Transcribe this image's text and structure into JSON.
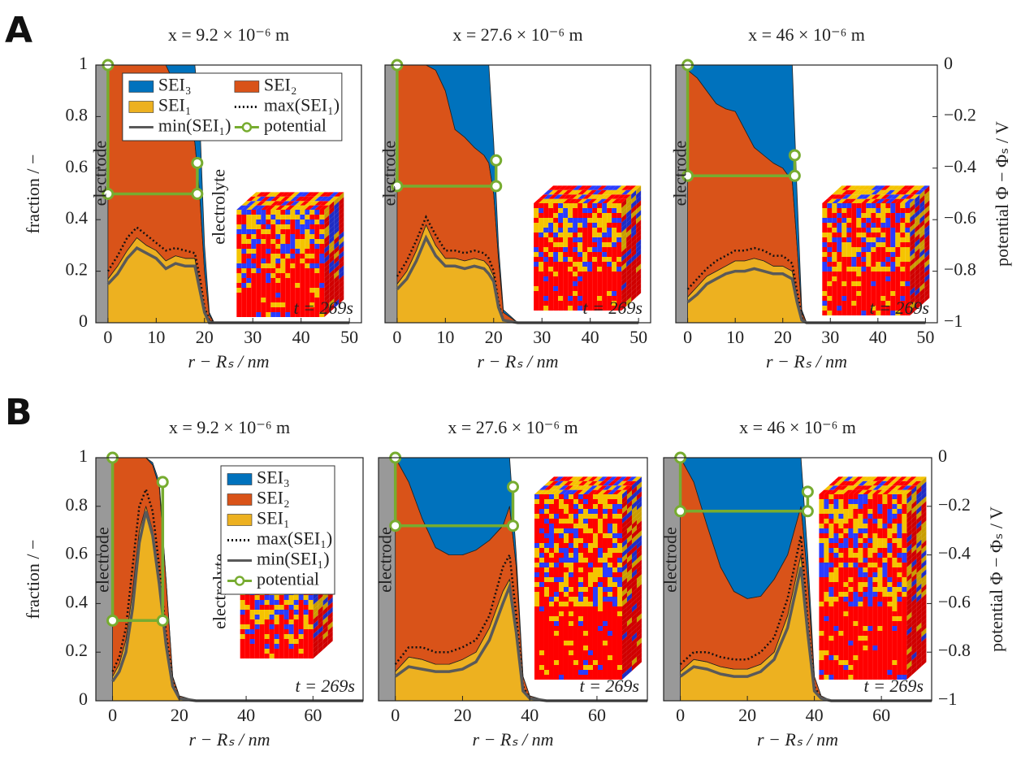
{
  "panel_labels": [
    "A",
    "B"
  ],
  "chart_data": [
    {
      "type": "area",
      "title": "x = 9.2 × 10⁻⁶ m",
      "xlabel": "r − Rₛ / nm",
      "ylabel": "fraction / −",
      "x": [
        0,
        2,
        4,
        6,
        8,
        10,
        12,
        14,
        16,
        18,
        19,
        20,
        21,
        22,
        25,
        30,
        40,
        50
      ],
      "xlim": [
        -2.5,
        52.5
      ],
      "xticks": [
        0,
        10,
        20,
        30,
        40,
        50
      ],
      "ylim": [
        0,
        1
      ],
      "yticks": [
        0,
        0.2,
        0.4,
        0.6,
        0.8,
        1
      ],
      "y2lim": [
        -1,
        0
      ],
      "legend": "upper left",
      "legend_columns": 2,
      "annotations": [
        "electrode",
        "electrolyte",
        "t = 269s"
      ],
      "series": [
        {
          "name": "SEI₃",
          "color": "#0072bd",
          "stack": true,
          "values": [
            0,
            0,
            0,
            0,
            0,
            0,
            0,
            0.08,
            0.2,
            0.3,
            0.3,
            0.1,
            0.01,
            0,
            0,
            0,
            0,
            0
          ]
        },
        {
          "name": "SEI₂",
          "color": "#d95319",
          "stack": true,
          "values": [
            0.83,
            0.78,
            0.72,
            0.67,
            0.7,
            0.72,
            0.76,
            0.66,
            0.55,
            0.45,
            0.35,
            0.15,
            0.02,
            0,
            0,
            0,
            0,
            0
          ]
        },
        {
          "name": "SEI₁",
          "color": "#edb120",
          "stack": true,
          "values": [
            0.17,
            0.22,
            0.28,
            0.33,
            0.3,
            0.28,
            0.24,
            0.26,
            0.25,
            0.25,
            0.15,
            0.05,
            0.01,
            0,
            0,
            0,
            0,
            0
          ]
        },
        {
          "name": "max(SEI₁)",
          "color": "#111111",
          "dash": "dotted",
          "values": [
            0.2,
            0.26,
            0.33,
            0.37,
            0.34,
            0.31,
            0.28,
            0.29,
            0.28,
            0.27,
            0.18,
            0.06,
            0.01,
            0,
            0,
            0,
            0,
            0
          ]
        },
        {
          "name": "min(SEI₁)",
          "color": "#595959",
          "values": [
            0.15,
            0.19,
            0.25,
            0.29,
            0.27,
            0.25,
            0.21,
            0.23,
            0.22,
            0.22,
            0.13,
            0.04,
            0,
            0,
            0,
            0,
            0,
            0
          ]
        },
        {
          "name": "potential",
          "color": "#77ac30",
          "axis": "y2",
          "x": [
            0,
            0,
            18.5,
            18.5
          ],
          "values": [
            0,
            -0.5,
            -0.5,
            -0.38
          ]
        }
      ]
    },
    {
      "type": "area",
      "title": "x = 27.6 × 10⁻⁶ m",
      "xlabel": "r − Rₛ / nm",
      "x": [
        0,
        2,
        4,
        6,
        8,
        10,
        12,
        14,
        16,
        18,
        19,
        20,
        21,
        22,
        25,
        30,
        40,
        50
      ],
      "xlim": [
        -2.5,
        52.5
      ],
      "xticks": [
        0,
        10,
        20,
        30,
        40,
        50
      ],
      "ylim": [
        0,
        1
      ],
      "y2lim": [
        -1,
        0
      ],
      "annotations": [
        "electrode",
        "t = 269s"
      ],
      "series": [
        {
          "name": "SEI₃",
          "color": "#0072bd",
          "stack": true,
          "values": [
            0,
            0,
            0,
            0,
            0.02,
            0.1,
            0.25,
            0.28,
            0.32,
            0.35,
            0.38,
            0.2,
            0.05,
            0.01,
            0,
            0,
            0,
            0
          ]
        },
        {
          "name": "SEI₂",
          "color": "#d95319",
          "stack": true,
          "values": [
            0.85,
            0.8,
            0.72,
            0.62,
            0.68,
            0.65,
            0.5,
            0.48,
            0.43,
            0.41,
            0.4,
            0.32,
            0.18,
            0.03,
            0,
            0,
            0,
            0
          ]
        },
        {
          "name": "SEI₁",
          "color": "#edb120",
          "stack": true,
          "values": [
            0.15,
            0.2,
            0.28,
            0.38,
            0.3,
            0.25,
            0.25,
            0.24,
            0.25,
            0.24,
            0.22,
            0.18,
            0.07,
            0.01,
            0,
            0,
            0,
            0
          ]
        },
        {
          "name": "max(SEI₁)",
          "color": "#111111",
          "dash": "dotted",
          "values": [
            0.18,
            0.24,
            0.32,
            0.41,
            0.34,
            0.28,
            0.28,
            0.27,
            0.28,
            0.27,
            0.25,
            0.2,
            0.08,
            0.01,
            0,
            0,
            0,
            0
          ]
        },
        {
          "name": "min(SEI₁)",
          "color": "#595959",
          "values": [
            0.13,
            0.17,
            0.24,
            0.33,
            0.26,
            0.22,
            0.22,
            0.21,
            0.22,
            0.21,
            0.19,
            0.16,
            0.06,
            0.01,
            0,
            0,
            0,
            0
          ]
        },
        {
          "name": "potential",
          "color": "#77ac30",
          "axis": "y2",
          "x": [
            0,
            0,
            20.5,
            20.5
          ],
          "values": [
            0,
            -0.47,
            -0.47,
            -0.37
          ]
        }
      ]
    },
    {
      "type": "area",
      "title": "x = 46 × 10⁻⁶ m",
      "xlabel": "r − Rₛ / nm",
      "y2label": "potential Φ − Φₛ / V",
      "x": [
        0,
        2,
        4,
        6,
        8,
        10,
        12,
        14,
        16,
        18,
        20,
        22,
        23,
        24,
        25,
        30,
        40,
        50
      ],
      "xlim": [
        -2.5,
        52.5
      ],
      "xticks": [
        0,
        10,
        20,
        30,
        40,
        50
      ],
      "ylim": [
        0,
        1
      ],
      "y2lim": [
        -1,
        0
      ],
      "y2ticks": [
        0,
        {
          "value": -0.2,
          "label": "−0.2"
        },
        {
          "value": -0.4,
          "label": "−0.4"
        },
        {
          "value": -0.6,
          "label": "−0.6"
        },
        {
          "value": -0.8,
          "label": "−0.8"
        },
        {
          "value": -1,
          "label": "−1"
        }
      ],
      "annotations": [
        "electrode",
        "t = 269s"
      ],
      "series": [
        {
          "name": "SEI₃",
          "color": "#0072bd",
          "stack": true,
          "values": [
            0.02,
            0.05,
            0.1,
            0.15,
            0.17,
            0.18,
            0.25,
            0.32,
            0.35,
            0.38,
            0.4,
            0.45,
            0.2,
            0.01,
            0,
            0,
            0,
            0
          ]
        },
        {
          "name": "SEI₂",
          "color": "#d95319",
          "stack": true,
          "values": [
            0.88,
            0.81,
            0.72,
            0.65,
            0.61,
            0.58,
            0.51,
            0.43,
            0.41,
            0.4,
            0.38,
            0.35,
            0.2,
            0.02,
            0,
            0,
            0,
            0
          ]
        },
        {
          "name": "SEI₁",
          "color": "#edb120",
          "stack": true,
          "values": [
            0.1,
            0.14,
            0.18,
            0.2,
            0.22,
            0.24,
            0.24,
            0.25,
            0.24,
            0.22,
            0.22,
            0.2,
            0.1,
            0.02,
            0,
            0,
            0,
            0
          ]
        },
        {
          "name": "max(SEI₁)",
          "color": "#111111",
          "dash": "dotted",
          "values": [
            0.13,
            0.17,
            0.21,
            0.24,
            0.26,
            0.28,
            0.28,
            0.29,
            0.28,
            0.26,
            0.26,
            0.23,
            0.12,
            0.02,
            0,
            0,
            0,
            0
          ]
        },
        {
          "name": "min(SEI₁)",
          "color": "#595959",
          "values": [
            0.08,
            0.11,
            0.15,
            0.17,
            0.19,
            0.2,
            0.2,
            0.21,
            0.2,
            0.19,
            0.19,
            0.17,
            0.08,
            0.01,
            0,
            0,
            0,
            0
          ]
        },
        {
          "name": "potential",
          "color": "#77ac30",
          "axis": "y2",
          "x": [
            0,
            0,
            22.5,
            22.5
          ],
          "values": [
            0,
            -0.43,
            -0.43,
            -0.35
          ]
        }
      ]
    },
    {
      "type": "area",
      "title": "x = 9.2 × 10⁻⁶ m",
      "xlabel": "r − Rₛ / nm",
      "ylabel": "fraction / −",
      "x": [
        0,
        2,
        4,
        6,
        8,
        10,
        12,
        14,
        16,
        18,
        20,
        25,
        30,
        40,
        50,
        60,
        75
      ],
      "xlim": [
        -5,
        75
      ],
      "xticks": [
        0,
        20,
        40,
        60
      ],
      "ylim": [
        0,
        1
      ],
      "yticks": [
        0,
        0.2,
        0.4,
        0.6,
        0.8,
        1
      ],
      "y2lim": [
        -1,
        0
      ],
      "legend": "upper right",
      "legend_columns": 1,
      "annotations": [
        "electrode",
        "electrolyte",
        "t = 269s"
      ],
      "series": [
        {
          "name": "SEI₃",
          "color": "#0072bd",
          "stack": true,
          "values": [
            0,
            0,
            0,
            0,
            0,
            0,
            0.01,
            0.02,
            0,
            0,
            0,
            0,
            0,
            0,
            0,
            0,
            0
          ]
        },
        {
          "name": "SEI₂",
          "color": "#d95319",
          "stack": true,
          "values": [
            0.9,
            0.85,
            0.75,
            0.55,
            0.3,
            0.2,
            0.27,
            0.38,
            0.25,
            0.03,
            0.01,
            0,
            0,
            0,
            0,
            0,
            0
          ]
        },
        {
          "name": "SEI₁",
          "color": "#edb120",
          "stack": true,
          "values": [
            0.1,
            0.15,
            0.25,
            0.45,
            0.7,
            0.8,
            0.7,
            0.5,
            0.25,
            0.07,
            0.01,
            0,
            0,
            0,
            0,
            0,
            0
          ]
        },
        {
          "name": "max(SEI₁)",
          "color": "#111111",
          "dash": "dotted",
          "values": [
            0.12,
            0.18,
            0.3,
            0.55,
            0.8,
            0.87,
            0.78,
            0.55,
            0.28,
            0.08,
            0.01,
            0,
            0,
            0,
            0,
            0,
            0
          ]
        },
        {
          "name": "min(SEI₁)",
          "color": "#595959",
          "values": [
            0.08,
            0.12,
            0.2,
            0.38,
            0.65,
            0.78,
            0.68,
            0.48,
            0.23,
            0.06,
            0.01,
            0,
            0,
            0,
            0,
            0,
            0
          ]
        },
        {
          "name": "potential",
          "color": "#77ac30",
          "axis": "y2",
          "x": [
            0,
            0,
            15,
            15
          ],
          "values": [
            0,
            -0.67,
            -0.67,
            -0.1
          ]
        }
      ]
    },
    {
      "type": "area",
      "title": "x = 27.6 × 10⁻⁶ m",
      "xlabel": "r − Rₛ / nm",
      "x": [
        0,
        4,
        8,
        12,
        16,
        20,
        24,
        28,
        32,
        34,
        36,
        38,
        40,
        45,
        50,
        60,
        75
      ],
      "xlim": [
        -5,
        75
      ],
      "xticks": [
        0,
        20,
        40,
        60
      ],
      "ylim": [
        0,
        1
      ],
      "y2lim": [
        -1,
        0
      ],
      "annotations": [
        "electrode",
        "t = 269s"
      ],
      "series": [
        {
          "name": "SEI₃",
          "color": "#0072bd",
          "stack": true,
          "values": [
            0,
            0.1,
            0.25,
            0.37,
            0.4,
            0.4,
            0.38,
            0.34,
            0.28,
            0.2,
            0.05,
            0,
            0,
            0,
            0,
            0,
            0
          ]
        },
        {
          "name": "SEI₂",
          "color": "#d95319",
          "stack": true,
          "values": [
            0.88,
            0.72,
            0.58,
            0.48,
            0.45,
            0.43,
            0.42,
            0.36,
            0.27,
            0.3,
            0.25,
            0.05,
            0.01,
            0,
            0,
            0,
            0
          ]
        },
        {
          "name": "SEI₁",
          "color": "#edb120",
          "stack": true,
          "values": [
            0.12,
            0.18,
            0.17,
            0.15,
            0.15,
            0.17,
            0.2,
            0.3,
            0.45,
            0.5,
            0.3,
            0.05,
            0.01,
            0,
            0,
            0,
            0
          ]
        },
        {
          "name": "max(SEI₁)",
          "color": "#111111",
          "dash": "dotted",
          "values": [
            0.15,
            0.22,
            0.22,
            0.2,
            0.2,
            0.22,
            0.25,
            0.35,
            0.55,
            0.6,
            0.35,
            0.06,
            0.01,
            0,
            0,
            0,
            0
          ]
        },
        {
          "name": "min(SEI₁)",
          "color": "#595959",
          "values": [
            0.1,
            0.14,
            0.13,
            0.12,
            0.12,
            0.13,
            0.16,
            0.25,
            0.4,
            0.47,
            0.28,
            0.04,
            0.01,
            0,
            0,
            0,
            0
          ]
        },
        {
          "name": "potential",
          "color": "#77ac30",
          "axis": "y2",
          "x": [
            0,
            0,
            35,
            35
          ],
          "values": [
            0,
            -0.28,
            -0.28,
            -0.12
          ]
        }
      ]
    },
    {
      "type": "area",
      "title": "x = 46 × 10⁻⁶ m",
      "xlabel": "r − Rₛ / nm",
      "y2label": "potential Φ − Φₛ / V",
      "x": [
        0,
        4,
        8,
        12,
        16,
        20,
        24,
        28,
        32,
        36,
        38,
        40,
        42,
        45,
        50,
        60,
        75
      ],
      "xlim": [
        -5,
        75
      ],
      "xticks": [
        0,
        20,
        40,
        60
      ],
      "ylim": [
        0,
        1
      ],
      "y2lim": [
        -1,
        0
      ],
      "y2ticks": [
        0,
        {
          "value": -0.2,
          "label": "−0.2"
        },
        {
          "value": -0.4,
          "label": "−0.4"
        },
        {
          "value": -0.6,
          "label": "−0.6"
        },
        {
          "value": -0.8,
          "label": "−0.8"
        },
        {
          "value": -1,
          "label": "−1"
        }
      ],
      "annotations": [
        "electrode",
        "t = 269s"
      ],
      "series": [
        {
          "name": "SEI₃",
          "color": "#0072bd",
          "stack": true,
          "values": [
            0,
            0.1,
            0.28,
            0.45,
            0.55,
            0.58,
            0.57,
            0.5,
            0.4,
            0.2,
            0.1,
            0,
            0,
            0,
            0,
            0,
            0
          ]
        },
        {
          "name": "SEI₂",
          "color": "#d95319",
          "stack": true,
          "values": [
            0.88,
            0.73,
            0.56,
            0.41,
            0.32,
            0.29,
            0.28,
            0.3,
            0.25,
            0.2,
            0.2,
            0.05,
            0.01,
            0,
            0,
            0,
            0
          ]
        },
        {
          "name": "SEI₁",
          "color": "#edb120",
          "stack": true,
          "values": [
            0.12,
            0.17,
            0.16,
            0.14,
            0.13,
            0.13,
            0.15,
            0.2,
            0.35,
            0.6,
            0.3,
            0.05,
            0.01,
            0,
            0,
            0,
            0
          ]
        },
        {
          "name": "max(SEI₁)",
          "color": "#111111",
          "dash": "dotted",
          "values": [
            0.15,
            0.2,
            0.2,
            0.18,
            0.17,
            0.17,
            0.2,
            0.26,
            0.42,
            0.68,
            0.33,
            0.06,
            0.01,
            0,
            0,
            0,
            0
          ]
        },
        {
          "name": "min(SEI₁)",
          "color": "#595959",
          "values": [
            0.1,
            0.14,
            0.13,
            0.11,
            0.1,
            0.1,
            0.12,
            0.17,
            0.3,
            0.55,
            0.28,
            0.04,
            0.01,
            0,
            0,
            0,
            0
          ]
        },
        {
          "name": "potential",
          "color": "#77ac30",
          "axis": "y2",
          "x": [
            0,
            0,
            38,
            38
          ],
          "values": [
            0,
            -0.22,
            -0.22,
            -0.14
          ]
        }
      ]
    }
  ]
}
